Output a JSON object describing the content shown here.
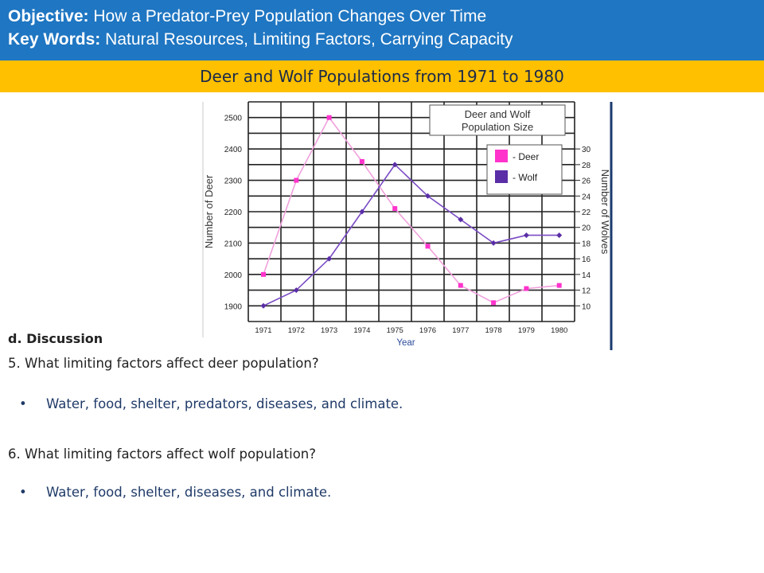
{
  "header": {
    "objective_label": "Objective:",
    "objective_text": "How a Predator-Prey Population Changes Over Time",
    "keywords_label": "Key Words:",
    "keywords_text": "Natural Resources, Limiting Factors, Carrying Capacity"
  },
  "banner": {
    "title": "Deer and Wolf Populations from 1971 to 1980"
  },
  "chart_data": {
    "type": "line",
    "title": "Deer and Wolf Population Size",
    "xlabel": "Year",
    "ylabel": "Number of Deer",
    "y2label": "Number of Wolves",
    "categories": [
      "1971",
      "1972",
      "1973",
      "1974",
      "1975",
      "1976",
      "1977",
      "1978",
      "1979",
      "1980"
    ],
    "ylim": [
      1850,
      2550
    ],
    "yticks": [
      1900,
      2000,
      2100,
      2200,
      2300,
      2400,
      2500
    ],
    "y2lim": [
      8,
      36
    ],
    "y2ticks": [
      10,
      12,
      14,
      16,
      18,
      20,
      22,
      24,
      26,
      28,
      30
    ],
    "grid": true,
    "legend_position": "top-right",
    "series": [
      {
        "name": "Deer",
        "legend_label": "- Deer",
        "axis": "left",
        "color": "#ff33cc",
        "line_color": "#f0a0dc",
        "marker": "square",
        "values": [
          2000,
          2300,
          2500,
          2360,
          2210,
          2090,
          1965,
          1910,
          1955,
          1965
        ]
      },
      {
        "name": "Wolf",
        "legend_label": "- Wolf",
        "axis": "right",
        "color": "#5a2ea6",
        "line_color": "#7a4bc4",
        "marker": "diamond",
        "values": [
          10,
          12,
          16,
          22,
          28,
          24,
          21,
          18,
          19,
          19
        ]
      }
    ]
  },
  "discussion": {
    "heading": "d. Discussion",
    "q5": "5.  What limiting factors affect deer population?",
    "a5": "Water, food, shelter, predators, diseases, and climate.",
    "q6": "6.  What limiting factors affect wolf population?",
    "a6": "Water, food, shelter, diseases, and climate.",
    "bullet": "•"
  }
}
